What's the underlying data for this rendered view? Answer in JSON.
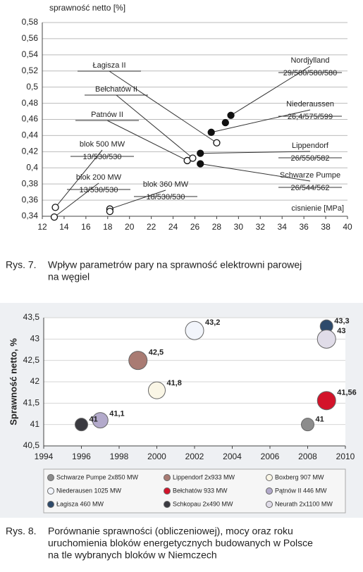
{
  "chart_data": [
    {
      "type": "scatter",
      "y_label": "sprawność netto [%]",
      "x_label": "cisnienie [MPa]",
      "xlim": [
        12,
        40
      ],
      "xticks": [
        12,
        14,
        16,
        18,
        20,
        22,
        24,
        26,
        28,
        30,
        32,
        34,
        36,
        38,
        40
      ],
      "ylim": [
        0.34,
        0.58
      ],
      "yticks": [
        {
          "value": 0.34,
          "label": "0,34"
        },
        {
          "value": 0.36,
          "label": "0,36"
        },
        {
          "value": 0.38,
          "label": "0,38"
        },
        {
          "value": 0.4,
          "label": "0,4"
        },
        {
          "value": 0.42,
          "label": "0,42"
        },
        {
          "value": 0.44,
          "label": "0,44"
        },
        {
          "value": 0.46,
          "label": "0,46"
        },
        {
          "value": 0.48,
          "label": "0,48"
        },
        {
          "value": 0.5,
          "label": "0,5"
        },
        {
          "value": 0.52,
          "label": "0,52"
        },
        {
          "value": 0.54,
          "label": "0,54"
        },
        {
          "value": 0.56,
          "label": "0,56"
        },
        {
          "value": 0.58,
          "label": "0,58"
        }
      ],
      "grid": true,
      "series": [
        {
          "marker": "open",
          "color": "#111",
          "x": [
            13.2,
            13.1,
            18.2,
            18.2,
            25.3,
            25.8,
            28.0
          ],
          "values": [
            0.351,
            0.339,
            0.349,
            0.346,
            0.409,
            0.412,
            0.431
          ]
        },
        {
          "marker": "filled",
          "color": "#111",
          "x": [
            26.5,
            26.5,
            27.5,
            28.8,
            29.3
          ],
          "values": [
            0.418,
            0.405,
            0.444,
            0.456,
            0.465
          ]
        }
      ],
      "annotations": [
        {
          "lines": [
            "Łagisza II"
          ]
        },
        {
          "lines": [
            "Bełchatów II"
          ]
        },
        {
          "lines": [
            "Patnów II"
          ]
        },
        {
          "lines": [
            "blok 500 MW",
            "13/530/530"
          ]
        },
        {
          "lines": [
            "blok 200 MW",
            "13/530/530"
          ]
        },
        {
          "lines": [
            "blok 360 MW",
            "18/530/530"
          ]
        },
        {
          "lines": [
            "Nordjylland",
            "29/580/580/580"
          ]
        },
        {
          "lines": [
            "Niederaussen",
            "26,4/575/599"
          ]
        },
        {
          "lines": [
            "Lippendorf",
            "26/550/582"
          ]
        },
        {
          "lines": [
            "Schwarze Pumpe",
            "26/544/562"
          ]
        }
      ],
      "caption_number": "Rys. 7.",
      "caption": [
        "Wpływ parametrów pary na sprawność elektrowni parowej",
        "na węgiel"
      ]
    },
    {
      "type": "bubble",
      "y_label": "Sprawność netto, %",
      "xlim": [
        1994,
        2010
      ],
      "xticks": [
        1994,
        1996,
        1998,
        2000,
        2002,
        2004,
        2006,
        2008,
        2010
      ],
      "ylim": [
        40.5,
        43.5
      ],
      "yticks": [
        {
          "value": 40.5,
          "label": "40,5"
        },
        41,
        {
          "value": 41.5,
          "label": "41,5"
        },
        42,
        {
          "value": 42.5,
          "label": "42,5"
        },
        43,
        {
          "value": 43.5,
          "label": "43,5"
        }
      ],
      "grid": true,
      "series": [
        {
          "name": "Schwarze Pumpe 2x850 MW",
          "color": "#8c8c8c",
          "x": [
            2008
          ],
          "values": [
            41
          ],
          "value_labels": [
            "41"
          ]
        },
        {
          "name": "Lippendorf 2x933 MW",
          "color": "#a97b73",
          "x": [
            1999
          ],
          "values": [
            42.5
          ],
          "value_labels": [
            "42,5"
          ]
        },
        {
          "name": "Boxberg 907 MW",
          "color": "#faf6e6",
          "x": [
            2000
          ],
          "values": [
            41.8
          ],
          "value_labels": [
            "41,8"
          ]
        },
        {
          "name": "Niederausen 1025 MW",
          "color": "#f2f5fb",
          "x": [
            2002
          ],
          "values": [
            43.2
          ],
          "value_labels": [
            "43,2"
          ]
        },
        {
          "name": "Bełchatów 933 MW",
          "color": "#d3132a",
          "x": [
            2009
          ],
          "values": [
            41.56
          ],
          "value_labels": [
            "41,56"
          ]
        },
        {
          "name": "Pątnów II 446 MW",
          "color": "#b3aacb",
          "x": [
            1997
          ],
          "values": [
            41.1
          ],
          "value_labels": [
            "41,1"
          ]
        },
        {
          "name": "Łagisza  460 MW",
          "color": "#2e4a6b",
          "x": [
            2009
          ],
          "values": [
            43.3
          ],
          "value_labels": [
            "43,3"
          ]
        },
        {
          "name": "Schkopau 2x490 MW",
          "color": "#3a3a40",
          "x": [
            1996
          ],
          "values": [
            41
          ],
          "value_labels": [
            "41"
          ]
        },
        {
          "name": "Neurath 2x1100 MW",
          "color": "#e0dce8",
          "x": [
            2009
          ],
          "values": [
            43
          ],
          "value_labels": [
            "43"
          ]
        }
      ],
      "caption_number": "Rys. 8.",
      "caption": [
        "Porównanie sprawności (obliczeniowej), mocy oraz roku",
        "uruchomienia bloków energetycznych budowanych w Polsce",
        "na tle wybranych bloków w Niemczech"
      ]
    }
  ]
}
